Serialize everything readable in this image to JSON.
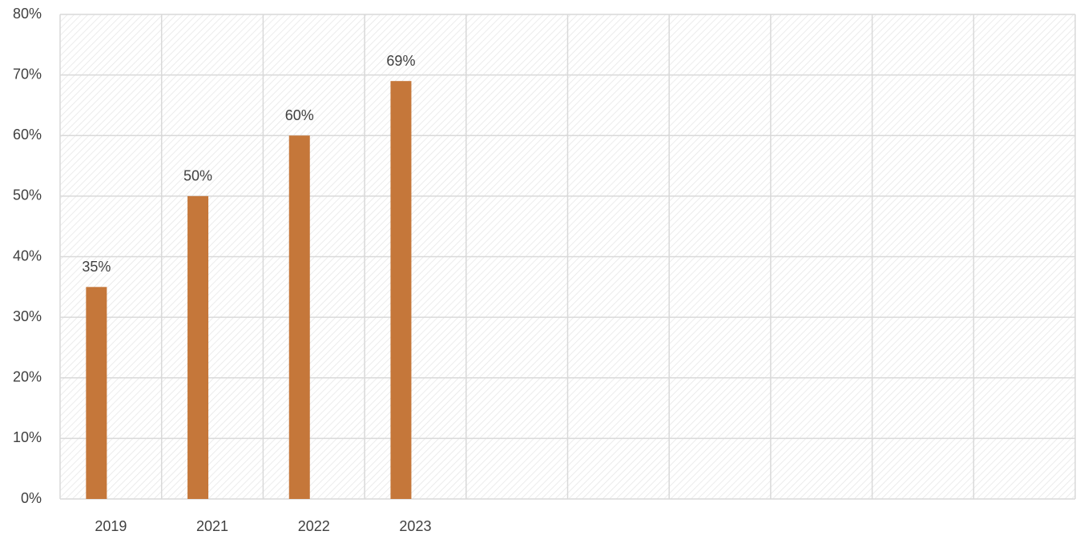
{
  "chart_data": {
    "type": "bar",
    "categories": [
      "2019",
      "2021",
      "2022",
      "2023",
      null,
      null,
      null,
      null,
      null,
      null
    ],
    "values": [
      35,
      50,
      60,
      69,
      null,
      null,
      null,
      null,
      null,
      null
    ],
    "value_labels": [
      "35%",
      "50%",
      "60%",
      "69%",
      null,
      null,
      null,
      null,
      null,
      null
    ],
    "color": "#c5773a",
    "ylim": [
      0,
      80
    ],
    "yticks": [
      {
        "value": 0,
        "label": "0%"
      },
      {
        "value": 10,
        "label": "10%"
      },
      {
        "value": 20,
        "label": "20%"
      },
      {
        "value": 30,
        "label": "30%"
      },
      {
        "value": 40,
        "label": "40%"
      },
      {
        "value": 50,
        "label": "50%"
      },
      {
        "value": 60,
        "label": "60%"
      },
      {
        "value": 70,
        "label": "70%"
      },
      {
        "value": 80,
        "label": "80%"
      }
    ],
    "grid": true
  }
}
